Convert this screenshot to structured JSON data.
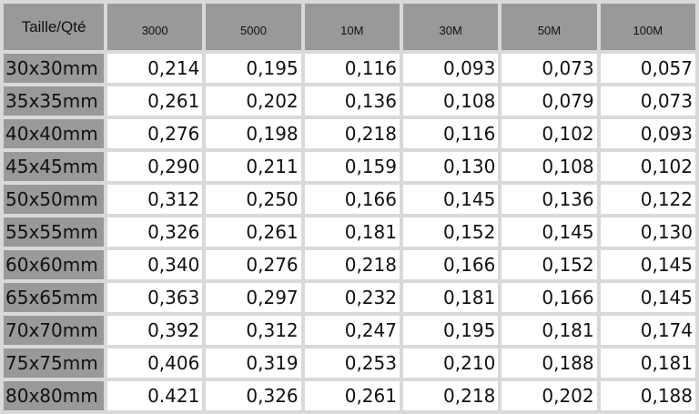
{
  "header": {
    "size_label": "Taille/Qté",
    "quantities": [
      "3000",
      "5000",
      "10M",
      "30M",
      "50M",
      "100M"
    ]
  },
  "rows": [
    {
      "size": "30x30mm",
      "values": [
        "0,214",
        "0,195",
        "0,116",
        "0,093",
        "0,073",
        "0,057"
      ]
    },
    {
      "size": "35x35mm",
      "values": [
        "0,261",
        "0,202",
        "0,136",
        "0,108",
        "0,079",
        "0,073"
      ]
    },
    {
      "size": "40x40mm",
      "values": [
        "0,276",
        "0,198",
        "0,218",
        "0,116",
        "0,102",
        "0,093"
      ]
    },
    {
      "size": "45x45mm",
      "values": [
        "0,290",
        "0,211",
        "0,159",
        "0,130",
        "0,108",
        "0,102"
      ]
    },
    {
      "size": "50x50mm",
      "values": [
        "0,312",
        "0,250",
        "0,166",
        "0,145",
        "0,136",
        "0,122"
      ]
    },
    {
      "size": "55x55mm",
      "values": [
        "0,326",
        "0,261",
        "0,181",
        "0,152",
        "0,145",
        "0,130"
      ]
    },
    {
      "size": "60x60mm",
      "values": [
        "0,340",
        "0,276",
        "0,218",
        "0,166",
        "0,152",
        "0,145"
      ]
    },
    {
      "size": "65x65mm",
      "values": [
        "0,363",
        "0,297",
        "0,232",
        "0,181",
        "0,166",
        "0,145"
      ]
    },
    {
      "size": "70x70mm",
      "values": [
        "0,392",
        "0,312",
        "0,247",
        "0,195",
        "0,181",
        "0,174"
      ]
    },
    {
      "size": "75x75mm",
      "values": [
        "0,406",
        "0,319",
        "0,253",
        "0,210",
        "0,188",
        "0,181"
      ]
    },
    {
      "size": "80x80mm",
      "values": [
        "0.421",
        "0,326",
        "0,261",
        "0,218",
        "0,202",
        "0,188"
      ]
    }
  ]
}
